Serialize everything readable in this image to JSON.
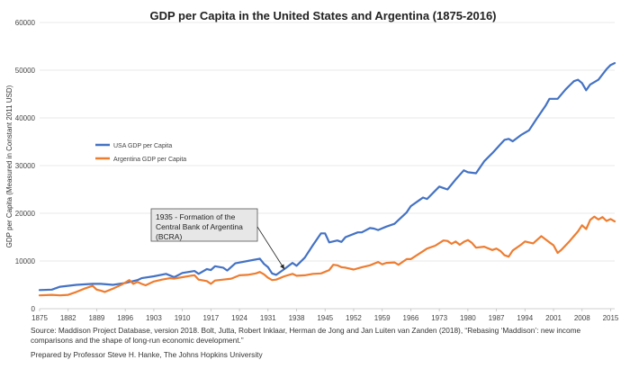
{
  "chart_data": {
    "type": "line",
    "title": "GDP per Capita in the United States and Argentina (1875-2016)",
    "xlabel": "",
    "ylabel": "GDP per Capita (Measured in Constant 2011 USD)",
    "xlim": [
      1875,
      2016
    ],
    "ylim": [
      0,
      60000
    ],
    "yticks": [
      "0",
      "10000",
      "20000",
      "30000",
      "40000",
      "50000",
      "60000"
    ],
    "xticks": [
      "1875",
      "1882",
      "1889",
      "1896",
      "1903",
      "1910",
      "1917",
      "1924",
      "1931",
      "1938",
      "1945",
      "1952",
      "1959",
      "1966",
      "1973",
      "1980",
      "1987",
      "1994",
      "2001",
      "2008",
      "2015"
    ],
    "legend_position": "left-middle",
    "series": [
      {
        "name": "USA GDP per Capita",
        "color": "#4472c4",
        "x": [
          1875,
          1878,
          1880,
          1884,
          1888,
          1890,
          1893,
          1896,
          1899,
          1900,
          1903,
          1906,
          1908,
          1910,
          1913,
          1914,
          1916,
          1917,
          1918,
          1920,
          1921,
          1923,
          1926,
          1929,
          1930,
          1931,
          1932,
          1933,
          1935,
          1937,
          1938,
          1940,
          1942,
          1944,
          1945,
          1946,
          1948,
          1949,
          1950,
          1953,
          1954,
          1956,
          1957,
          1958,
          1960,
          1962,
          1965,
          1966,
          1968,
          1969,
          1970,
          1973,
          1974,
          1975,
          1977,
          1979,
          1980,
          1982,
          1984,
          1986,
          1988,
          1989,
          1990,
          1991,
          1993,
          1995,
          1997,
          1999,
          2000,
          2002,
          2004,
          2006,
          2007,
          2008,
          2009,
          2010,
          2012,
          2014,
          2015,
          2016
        ],
        "values": [
          3900,
          4000,
          4600,
          5000,
          5200,
          5200,
          5000,
          5400,
          6000,
          6400,
          6800,
          7300,
          6600,
          7500,
          7900,
          7300,
          8300,
          8100,
          8900,
          8600,
          8000,
          9500,
          10000,
          10500,
          9400,
          8700,
          7400,
          7100,
          8300,
          9600,
          9000,
          10700,
          13300,
          15800,
          15800,
          13900,
          14300,
          14000,
          15000,
          16000,
          16000,
          16900,
          16800,
          16500,
          17200,
          17800,
          20200,
          21500,
          22700,
          23300,
          23000,
          25600,
          25300,
          25000,
          27100,
          29000,
          28600,
          28400,
          30900,
          32600,
          34500,
          35400,
          35600,
          35100,
          36400,
          37400,
          40000,
          42500,
          44000,
          44000,
          46000,
          47700,
          48000,
          47300,
          45800,
          47000,
          48000,
          50200,
          51100,
          51500
        ]
      },
      {
        "name": "Argentina GDP per Capita",
        "color": "#ed7d31",
        "x": [
          1875,
          1878,
          1880,
          1882,
          1884,
          1886,
          1888,
          1889,
          1890,
          1891,
          1893,
          1895,
          1896,
          1897,
          1898,
          1899,
          1900,
          1901,
          1903,
          1905,
          1907,
          1908,
          1910,
          1912,
          1913,
          1914,
          1916,
          1917,
          1918,
          1920,
          1922,
          1924,
          1926,
          1928,
          1929,
          1930,
          1931,
          1932,
          1933,
          1935,
          1937,
          1938,
          1940,
          1942,
          1944,
          1946,
          1947,
          1948,
          1949,
          1950,
          1952,
          1954,
          1956,
          1958,
          1959,
          1960,
          1962,
          1963,
          1965,
          1966,
          1968,
          1970,
          1972,
          1974,
          1975,
          1976,
          1977,
          1978,
          1979,
          1980,
          1981,
          1982,
          1984,
          1986,
          1987,
          1988,
          1989,
          1990,
          1991,
          1993,
          1994,
          1996,
          1998,
          2000,
          2001,
          2002,
          2003,
          2005,
          2007,
          2008,
          2009,
          2010,
          2011,
          2012,
          2013,
          2014,
          2015,
          2016
        ],
        "values": [
          2800,
          2900,
          2800,
          2900,
          3500,
          4200,
          4800,
          4000,
          3800,
          3500,
          4200,
          5000,
          5500,
          6000,
          5200,
          5600,
          5200,
          4900,
          5700,
          6100,
          6400,
          6300,
          6600,
          6900,
          7000,
          6100,
          5800,
          5200,
          5900,
          6100,
          6300,
          7000,
          7100,
          7400,
          7700,
          7200,
          6500,
          6000,
          6100,
          6800,
          7300,
          6900,
          7000,
          7300,
          7400,
          8100,
          9200,
          9100,
          8700,
          8600,
          8200,
          8700,
          9100,
          9800,
          9300,
          9600,
          9700,
          9200,
          10400,
          10400,
          11500,
          12600,
          13200,
          14300,
          14200,
          13600,
          14100,
          13400,
          14000,
          14400,
          13800,
          12800,
          13000,
          12300,
          12600,
          12100,
          11200,
          10900,
          12200,
          13400,
          14100,
          13700,
          15200,
          13900,
          13300,
          11700,
          12400,
          14200,
          16200,
          17500,
          16700,
          18600,
          19300,
          18700,
          19200,
          18400,
          18800,
          18300
        ]
      }
    ],
    "annotation": {
      "lines": [
        "1935 - Formation of the",
        "Central Bank of Argentina",
        "(BCRA)"
      ],
      "x": 1935,
      "y": 8300
    }
  },
  "source_text": "Source: Maddison Project Database, version 2018. Bolt, Jutta, Robert Inklaar, Herman de Jong and Jan Luiten van Zanden (2018), “Rebasing ‘Maddison’: new income comparisons and the shape of long-run economic development.”",
  "credit_text": "Prepared by Professor Steve H. Hanke, The Johns Hopkins University"
}
